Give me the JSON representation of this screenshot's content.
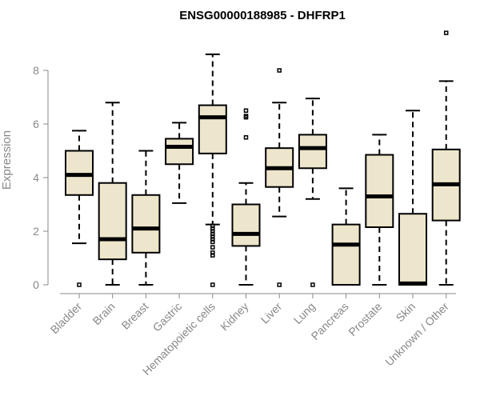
{
  "chart_data": {
    "type": "box",
    "title": "ENSG00000188985 - DHFRP1",
    "xlabel": "",
    "ylabel": "Expression",
    "ylim": [
      0,
      9.5
    ],
    "yticks": [
      0,
      2,
      4,
      6,
      8
    ],
    "grid": false,
    "colors": {
      "box_fill": "#ede6cc",
      "box_stroke": "#000000",
      "axis": "#888888"
    },
    "categories": [
      "Bladder",
      "Brain",
      "Breast",
      "Gastric",
      "Hematopoietic cells",
      "Kidney",
      "Liver",
      "Lung",
      "Pancreas",
      "Prostate",
      "Skin",
      "Unknown / Other"
    ],
    "boxes": [
      {
        "label": "Bladder",
        "whisker_low": 1.55,
        "q1": 3.35,
        "median": 4.1,
        "q3": 5.0,
        "whisker_high": 5.75,
        "outliers": [
          0.0
        ]
      },
      {
        "label": "Brain",
        "whisker_low": 0.0,
        "q1": 0.95,
        "median": 1.7,
        "q3": 3.8,
        "whisker_high": 6.8,
        "outliers": []
      },
      {
        "label": "Breast",
        "whisker_low": 0.0,
        "q1": 1.2,
        "median": 2.1,
        "q3": 3.35,
        "whisker_high": 5.0,
        "outliers": []
      },
      {
        "label": "Gastric",
        "whisker_low": 3.05,
        "q1": 4.5,
        "median": 5.15,
        "q3": 5.45,
        "whisker_high": 6.05,
        "outliers": []
      },
      {
        "label": "Hematopoietic cells",
        "whisker_low": 2.25,
        "q1": 4.9,
        "median": 6.25,
        "q3": 6.7,
        "whisker_high": 8.6,
        "outliers": [
          2.2,
          2.1,
          2.0,
          1.9,
          1.8,
          1.7,
          1.6,
          1.4,
          1.2,
          1.1,
          0.0
        ]
      },
      {
        "label": "Kidney",
        "whisker_low": 0.0,
        "q1": 1.45,
        "median": 1.9,
        "q3": 3.0,
        "whisker_high": 3.8,
        "outliers": [
          6.5,
          6.3,
          6.25,
          5.5
        ]
      },
      {
        "label": "Liver",
        "whisker_low": 2.55,
        "q1": 3.65,
        "median": 4.35,
        "q3": 5.1,
        "whisker_high": 6.8,
        "outliers": [
          8.0,
          0.0
        ]
      },
      {
        "label": "Lung",
        "whisker_low": 3.2,
        "q1": 4.35,
        "median": 5.1,
        "q3": 5.6,
        "whisker_high": 6.95,
        "outliers": [
          0.0
        ]
      },
      {
        "label": "Pancreas",
        "whisker_low": 0.0,
        "q1": 0.0,
        "median": 1.5,
        "q3": 2.25,
        "whisker_high": 3.6,
        "outliers": []
      },
      {
        "label": "Prostate",
        "whisker_low": 0.0,
        "q1": 2.15,
        "median": 3.3,
        "q3": 4.85,
        "whisker_high": 5.6,
        "outliers": []
      },
      {
        "label": "Skin",
        "whisker_low": 0.0,
        "q1": 0.0,
        "median": 0.05,
        "q3": 2.65,
        "whisker_high": 6.5,
        "outliers": []
      },
      {
        "label": "Unknown / Other",
        "whisker_low": 0.0,
        "q1": 2.4,
        "median": 3.75,
        "q3": 5.05,
        "whisker_high": 7.6,
        "outliers": [
          9.4
        ]
      }
    ]
  }
}
